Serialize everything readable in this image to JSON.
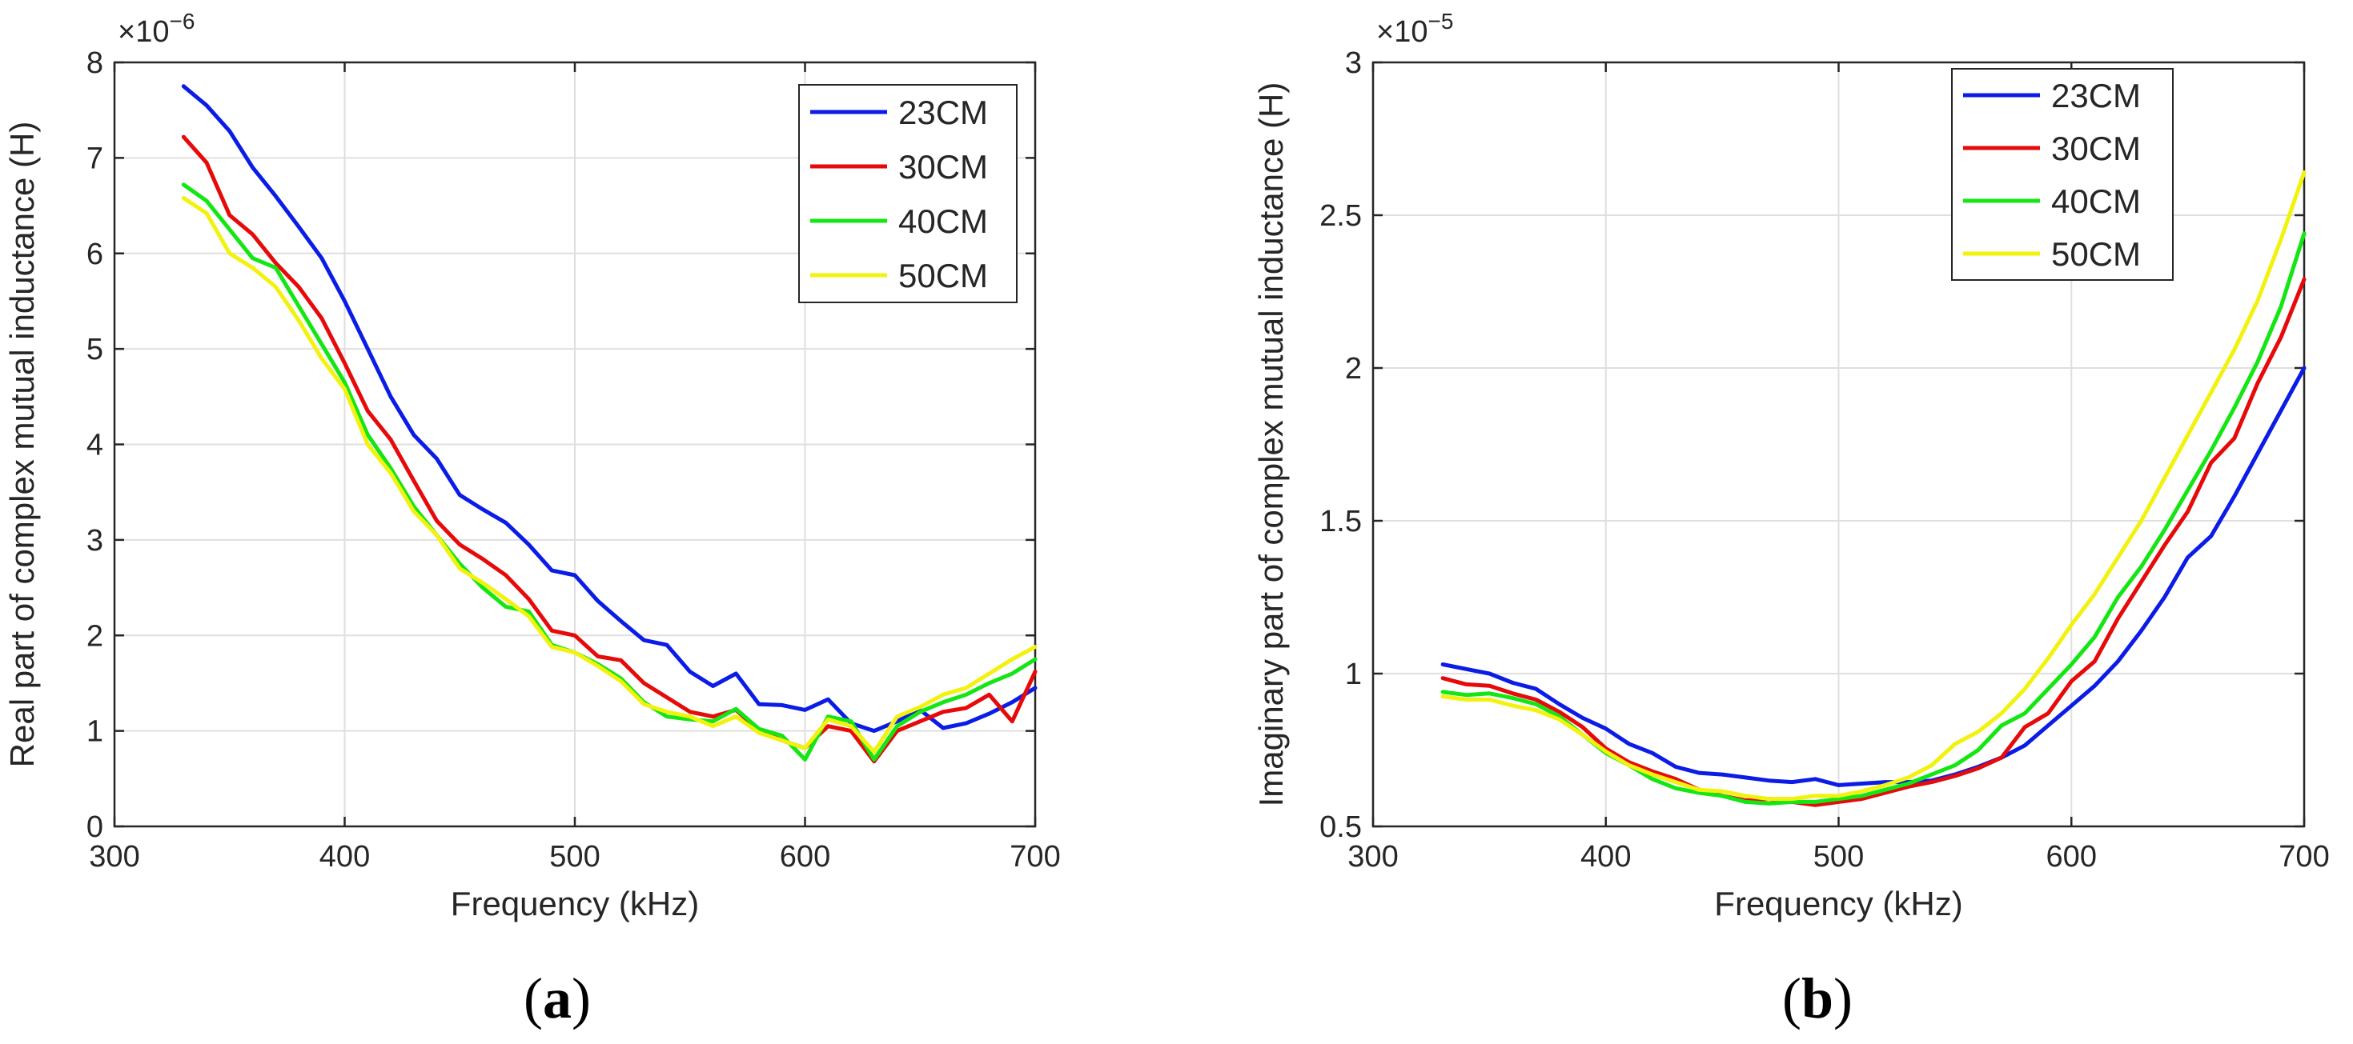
{
  "figure_label_a_open": "(",
  "figure_label_a_letter": "a",
  "figure_label_a_close": ")",
  "figure_label_b_open": "(",
  "figure_label_b_letter": "b",
  "figure_label_b_close": ")",
  "chart_data": [
    {
      "type": "line",
      "id": "a",
      "title": "",
      "xlabel": "Frequency (kHz)",
      "ylabel": "Real part of complex mutual inductance (H)",
      "exponent_base": "×10",
      "exponent_power": "−6",
      "xlim": [
        300,
        700
      ],
      "ylim": [
        0,
        8
      ],
      "xticks": [
        300,
        400,
        500,
        600,
        700
      ],
      "yticks": [
        0,
        1,
        2,
        3,
        4,
        5,
        6,
        7,
        8
      ],
      "grid": true,
      "legend_position": "top-right",
      "x": [
        330,
        340,
        350,
        360,
        370,
        380,
        390,
        400,
        410,
        420,
        430,
        440,
        450,
        460,
        470,
        480,
        490,
        500,
        510,
        520,
        530,
        540,
        550,
        560,
        570,
        580,
        590,
        600,
        610,
        620,
        630,
        640,
        650,
        660,
        670,
        680,
        690,
        700
      ],
      "series": [
        {
          "name": "23CM",
          "color": "#0a1ce6",
          "values": [
            7.75,
            7.55,
            7.28,
            6.9,
            6.6,
            6.28,
            5.95,
            5.5,
            5.0,
            4.5,
            4.1,
            3.85,
            3.47,
            3.32,
            3.18,
            2.95,
            2.68,
            2.63,
            2.36,
            2.15,
            1.95,
            1.9,
            1.62,
            1.47,
            1.6,
            1.28,
            1.27,
            1.22,
            1.33,
            1.08,
            1.0,
            1.1,
            1.22,
            1.03,
            1.08,
            1.18,
            1.3,
            1.45
          ]
        },
        {
          "name": "30CM",
          "color": "#e60a0a",
          "values": [
            7.22,
            6.95,
            6.4,
            6.2,
            5.9,
            5.65,
            5.32,
            4.85,
            4.35,
            4.05,
            3.62,
            3.2,
            2.95,
            2.8,
            2.63,
            2.38,
            2.05,
            2.0,
            1.78,
            1.74,
            1.5,
            1.35,
            1.2,
            1.15,
            1.22,
            1.0,
            0.9,
            0.82,
            1.05,
            1.0,
            0.68,
            1.0,
            1.1,
            1.2,
            1.24,
            1.38,
            1.1,
            1.62
          ]
        },
        {
          "name": "40CM",
          "color": "#14e614",
          "values": [
            6.72,
            6.55,
            6.25,
            5.95,
            5.85,
            5.45,
            5.05,
            4.65,
            4.1,
            3.75,
            3.35,
            3.05,
            2.75,
            2.5,
            2.3,
            2.25,
            1.9,
            1.82,
            1.7,
            1.55,
            1.3,
            1.15,
            1.12,
            1.1,
            1.23,
            1.02,
            0.95,
            0.7,
            1.15,
            1.1,
            0.7,
            1.05,
            1.2,
            1.3,
            1.38,
            1.5,
            1.6,
            1.75
          ]
        },
        {
          "name": "50CM",
          "color": "#f2f20f",
          "values": [
            6.58,
            6.42,
            6.0,
            5.85,
            5.65,
            5.3,
            4.9,
            4.58,
            4.0,
            3.7,
            3.3,
            3.05,
            2.7,
            2.55,
            2.38,
            2.2,
            1.88,
            1.82,
            1.68,
            1.52,
            1.28,
            1.2,
            1.15,
            1.05,
            1.15,
            0.98,
            0.9,
            0.82,
            1.12,
            1.05,
            0.78,
            1.15,
            1.25,
            1.38,
            1.45,
            1.6,
            1.75,
            1.88
          ]
        }
      ]
    },
    {
      "type": "line",
      "id": "b",
      "title": "",
      "xlabel": "Frequency (kHz)",
      "ylabel": "Imaginary part of complex mutual inductance (H)",
      "exponent_base": "×10",
      "exponent_power": "−5",
      "xlim": [
        300,
        700
      ],
      "ylim": [
        0.5,
        3
      ],
      "xticks": [
        300,
        400,
        500,
        600,
        700
      ],
      "yticks": [
        0.5,
        1,
        1.5,
        2,
        2.5,
        3
      ],
      "grid": true,
      "legend_position": "top-right",
      "x": [
        330,
        340,
        350,
        360,
        370,
        380,
        390,
        400,
        410,
        420,
        430,
        440,
        450,
        460,
        470,
        480,
        490,
        500,
        510,
        520,
        530,
        540,
        550,
        560,
        570,
        580,
        590,
        600,
        610,
        620,
        630,
        640,
        650,
        660,
        670,
        680,
        690,
        700
      ],
      "series": [
        {
          "name": "23CM",
          "color": "#0a1ce6",
          "values": [
            1.03,
            1.015,
            1.0,
            0.97,
            0.95,
            0.9,
            0.855,
            0.82,
            0.77,
            0.74,
            0.695,
            0.675,
            0.67,
            0.66,
            0.65,
            0.645,
            0.655,
            0.635,
            0.64,
            0.645,
            0.645,
            0.65,
            0.67,
            0.695,
            0.725,
            0.765,
            0.83,
            0.895,
            0.96,
            1.04,
            1.14,
            1.25,
            1.38,
            1.45,
            1.58,
            1.72,
            1.86,
            2.0
          ]
        },
        {
          "name": "30CM",
          "color": "#e60a0a",
          "values": [
            0.985,
            0.965,
            0.96,
            0.935,
            0.915,
            0.875,
            0.825,
            0.755,
            0.71,
            0.68,
            0.655,
            0.62,
            0.6,
            0.585,
            0.59,
            0.58,
            0.57,
            0.58,
            0.59,
            0.61,
            0.63,
            0.645,
            0.665,
            0.69,
            0.725,
            0.825,
            0.87,
            0.975,
            1.04,
            1.18,
            1.3,
            1.42,
            1.53,
            1.69,
            1.77,
            1.95,
            2.1,
            2.29
          ]
        },
        {
          "name": "40CM",
          "color": "#14e614",
          "values": [
            0.94,
            0.93,
            0.935,
            0.92,
            0.9,
            0.86,
            0.8,
            0.74,
            0.7,
            0.655,
            0.625,
            0.61,
            0.6,
            0.58,
            0.575,
            0.58,
            0.58,
            0.59,
            0.6,
            0.62,
            0.64,
            0.67,
            0.7,
            0.75,
            0.83,
            0.87,
            0.95,
            1.03,
            1.12,
            1.25,
            1.35,
            1.47,
            1.6,
            1.73,
            1.87,
            2.02,
            2.2,
            2.44
          ]
        },
        {
          "name": "50CM",
          "color": "#f2f20f",
          "values": [
            0.925,
            0.915,
            0.915,
            0.895,
            0.88,
            0.85,
            0.8,
            0.745,
            0.7,
            0.67,
            0.645,
            0.62,
            0.615,
            0.6,
            0.59,
            0.59,
            0.6,
            0.6,
            0.615,
            0.635,
            0.66,
            0.7,
            0.77,
            0.81,
            0.87,
            0.95,
            1.05,
            1.16,
            1.26,
            1.38,
            1.5,
            1.64,
            1.78,
            1.92,
            2.06,
            2.22,
            2.42,
            2.64
          ]
        }
      ]
    }
  ]
}
